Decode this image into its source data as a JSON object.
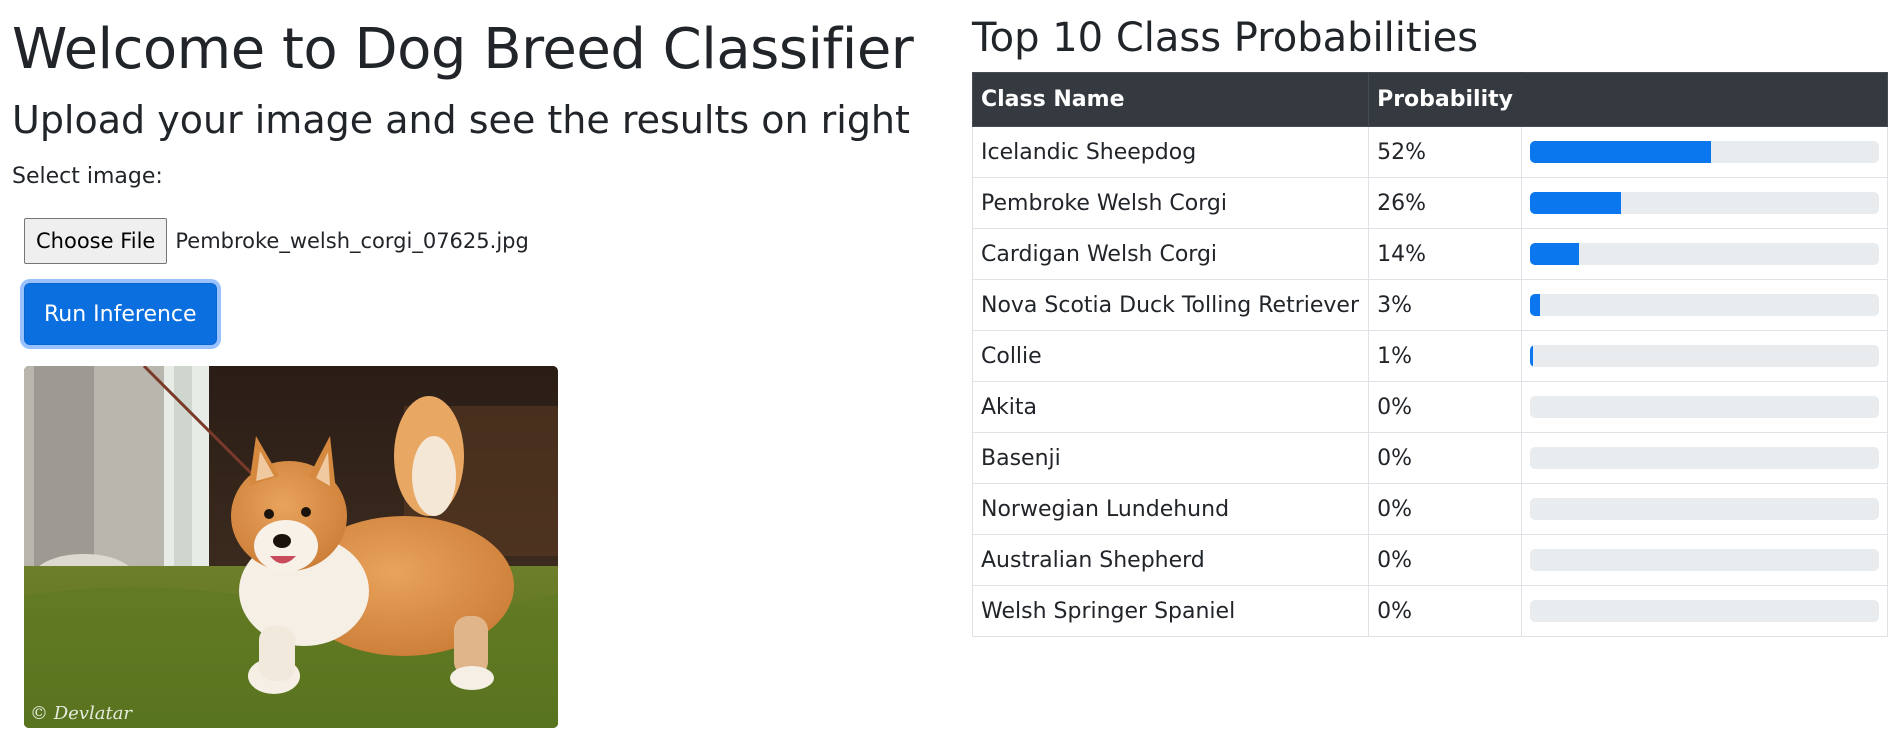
{
  "header": {
    "title": "Welcome to Dog Breed Classifier",
    "subtitle": "Upload your image and see the results on right"
  },
  "upload": {
    "select_label": "Select image:",
    "choose_button": "Choose File",
    "file_name": "Pembroke_welsh_corgi_07625.jpg",
    "run_button": "Run Inference"
  },
  "preview": {
    "watermark": "© Devlatar"
  },
  "results": {
    "title": "Top 10 Class Probabilities",
    "columns": [
      "Class Name",
      "Probability"
    ],
    "rows": [
      {
        "name": "Icelandic Sheepdog",
        "prob": "52%",
        "value": 0.52
      },
      {
        "name": "Pembroke Welsh Corgi",
        "prob": "26%",
        "value": 0.26
      },
      {
        "name": "Cardigan Welsh Corgi",
        "prob": "14%",
        "value": 0.14
      },
      {
        "name": "Nova Scotia Duck Tolling Retriever",
        "prob": "3%",
        "value": 0.03
      },
      {
        "name": "Collie",
        "prob": "1%",
        "value": 0.01
      },
      {
        "name": "Akita",
        "prob": "0%",
        "value": 0
      },
      {
        "name": "Basenji",
        "prob": "0%",
        "value": 0
      },
      {
        "name": "Norwegian Lundehund",
        "prob": "0%",
        "value": 0
      },
      {
        "name": "Australian Shepherd",
        "prob": "0%",
        "value": 0
      },
      {
        "name": "Welsh Springer Spaniel",
        "prob": "0%",
        "value": 0
      }
    ]
  },
  "colors": {
    "accent": "#0b6fe0",
    "bar_fill": "#0b77ee",
    "bar_track": "#e9ecef",
    "table_header": "#343a40"
  }
}
